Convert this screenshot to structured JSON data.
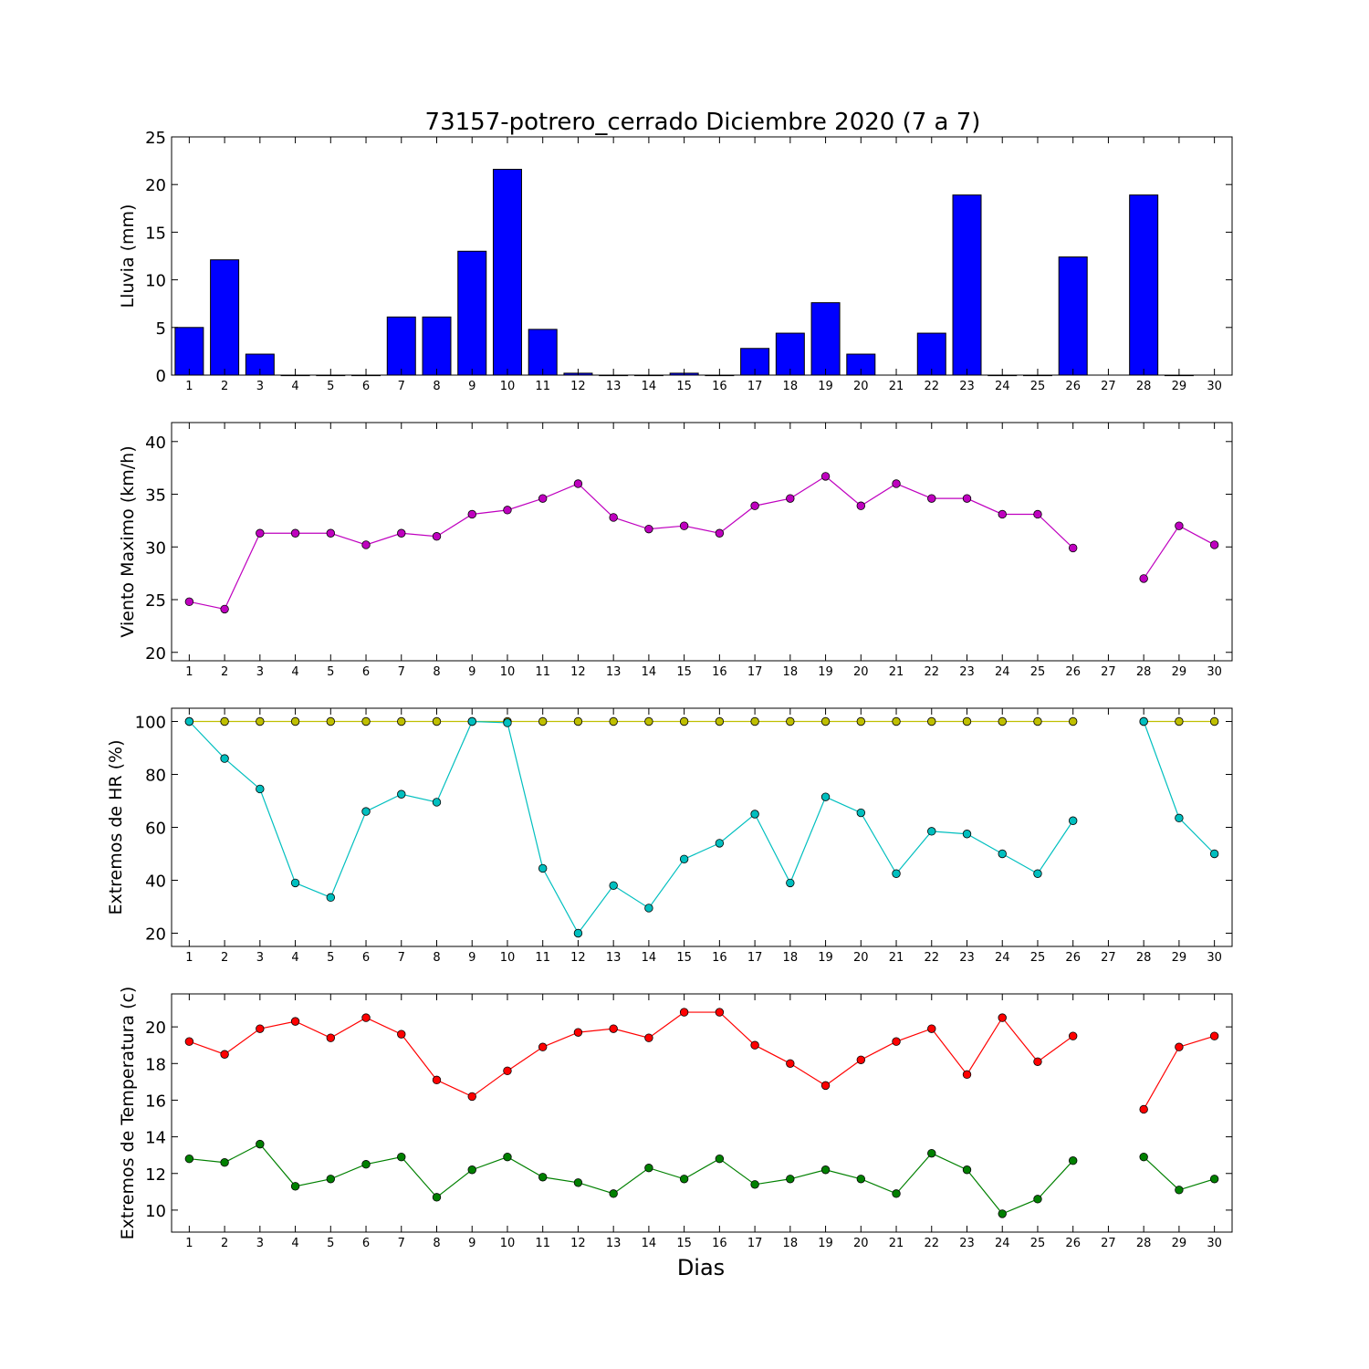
{
  "title": "73157-potrero_cerrado Diciembre 2020  (7 a 7)",
  "xlabel": "Dias",
  "chart_data": [
    {
      "type": "bar",
      "ylabel": "Lluvia (mm)",
      "ylim": [
        0,
        25
      ],
      "yticks": [
        "0",
        "5",
        "10",
        "15",
        "20",
        "25"
      ],
      "categories": [
        "1",
        "2",
        "3",
        "4",
        "5",
        "6",
        "7",
        "8",
        "9",
        "10",
        "11",
        "12",
        "13",
        "14",
        "15",
        "16",
        "17",
        "18",
        "19",
        "20",
        "21",
        "22",
        "23",
        "24",
        "25",
        "26",
        "27",
        "28",
        "29",
        "30"
      ],
      "color": "#0000ff",
      "values": [
        5,
        12.1,
        2.2,
        0,
        0,
        0,
        6.1,
        6.1,
        13,
        21.6,
        4.8,
        0.2,
        0,
        0,
        0.2,
        0,
        2.8,
        4.4,
        7.6,
        2.2,
        null,
        4.4,
        18.9,
        0,
        0,
        12.4,
        null,
        18.9,
        0,
        null
      ]
    },
    {
      "type": "line",
      "ylabel": "Viento Maximo (km/h)",
      "ylim": [
        19.2,
        41.8
      ],
      "yticks": [
        "20",
        "25",
        "30",
        "35",
        "40"
      ],
      "categories": [
        "1",
        "2",
        "3",
        "4",
        "5",
        "6",
        "7",
        "8",
        "9",
        "10",
        "11",
        "12",
        "13",
        "14",
        "15",
        "16",
        "17",
        "18",
        "19",
        "20",
        "21",
        "22",
        "23",
        "24",
        "25",
        "26",
        "27",
        "28",
        "29",
        "30"
      ],
      "series": [
        {
          "color": "#bf00bf",
          "values": [
            24.8,
            24.1,
            31.3,
            31.3,
            31.3,
            30.2,
            31.3,
            31.0,
            33.1,
            33.5,
            34.6,
            36.0,
            32.8,
            31.7,
            32.0,
            31.3,
            33.9,
            34.6,
            36.7,
            33.9,
            36.0,
            34.6,
            34.6,
            33.1,
            33.1,
            29.9,
            null,
            27.0,
            32.0,
            30.2
          ]
        }
      ]
    },
    {
      "type": "line",
      "ylabel": "Extremos de HR (%)",
      "ylim": [
        15,
        105
      ],
      "yticks": [
        "20",
        "40",
        "60",
        "80",
        "100"
      ],
      "categories": [
        "1",
        "2",
        "3",
        "4",
        "5",
        "6",
        "7",
        "8",
        "9",
        "10",
        "11",
        "12",
        "13",
        "14",
        "15",
        "16",
        "17",
        "18",
        "19",
        "20",
        "21",
        "22",
        "23",
        "24",
        "25",
        "26",
        "27",
        "28",
        "29",
        "30"
      ],
      "series": [
        {
          "color": "#bfbf00",
          "values": [
            100,
            100,
            100,
            100,
            100,
            100,
            100,
            100,
            100,
            100,
            100,
            100,
            100,
            100,
            100,
            100,
            100,
            100,
            100,
            100,
            100,
            100,
            100,
            100,
            100,
            100,
            null,
            100,
            100,
            100
          ]
        },
        {
          "color": "#00bfbf",
          "values": [
            100,
            86,
            74.5,
            39,
            33.5,
            66,
            72.5,
            69.5,
            100,
            99.5,
            44.5,
            20,
            38,
            29.5,
            48,
            54,
            65,
            39,
            71.5,
            65.5,
            42.5,
            58.5,
            57.5,
            50,
            42.5,
            62.5,
            null,
            100,
            63.5,
            50
          ]
        }
      ]
    },
    {
      "type": "line",
      "ylabel": "Extremos de Temperatura (c)",
      "ylim": [
        8.8,
        21.8
      ],
      "yticks": [
        "10",
        "12",
        "14",
        "16",
        "18",
        "20"
      ],
      "categories": [
        "1",
        "2",
        "3",
        "4",
        "5",
        "6",
        "7",
        "8",
        "9",
        "10",
        "11",
        "12",
        "13",
        "14",
        "15",
        "16",
        "17",
        "18",
        "19",
        "20",
        "21",
        "22",
        "23",
        "24",
        "25",
        "26",
        "27",
        "28",
        "29",
        "30"
      ],
      "series": [
        {
          "color": "#ff0000",
          "values": [
            19.2,
            18.5,
            19.9,
            20.3,
            19.4,
            20.5,
            19.6,
            17.1,
            16.2,
            17.6,
            18.9,
            19.7,
            19.9,
            19.4,
            20.8,
            20.8,
            19.0,
            18.0,
            16.8,
            18.2,
            19.2,
            19.9,
            17.4,
            20.5,
            18.1,
            19.5,
            null,
            15.5,
            18.9,
            19.5
          ]
        },
        {
          "color": "#008000",
          "values": [
            12.8,
            12.6,
            13.6,
            11.3,
            11.7,
            12.5,
            12.9,
            10.7,
            12.2,
            12.9,
            11.8,
            11.5,
            10.9,
            12.3,
            11.7,
            12.8,
            11.4,
            11.7,
            12.2,
            11.7,
            10.9,
            13.1,
            12.2,
            9.8,
            10.6,
            12.7,
            null,
            12.9,
            11.1,
            11.7
          ]
        }
      ]
    }
  ]
}
